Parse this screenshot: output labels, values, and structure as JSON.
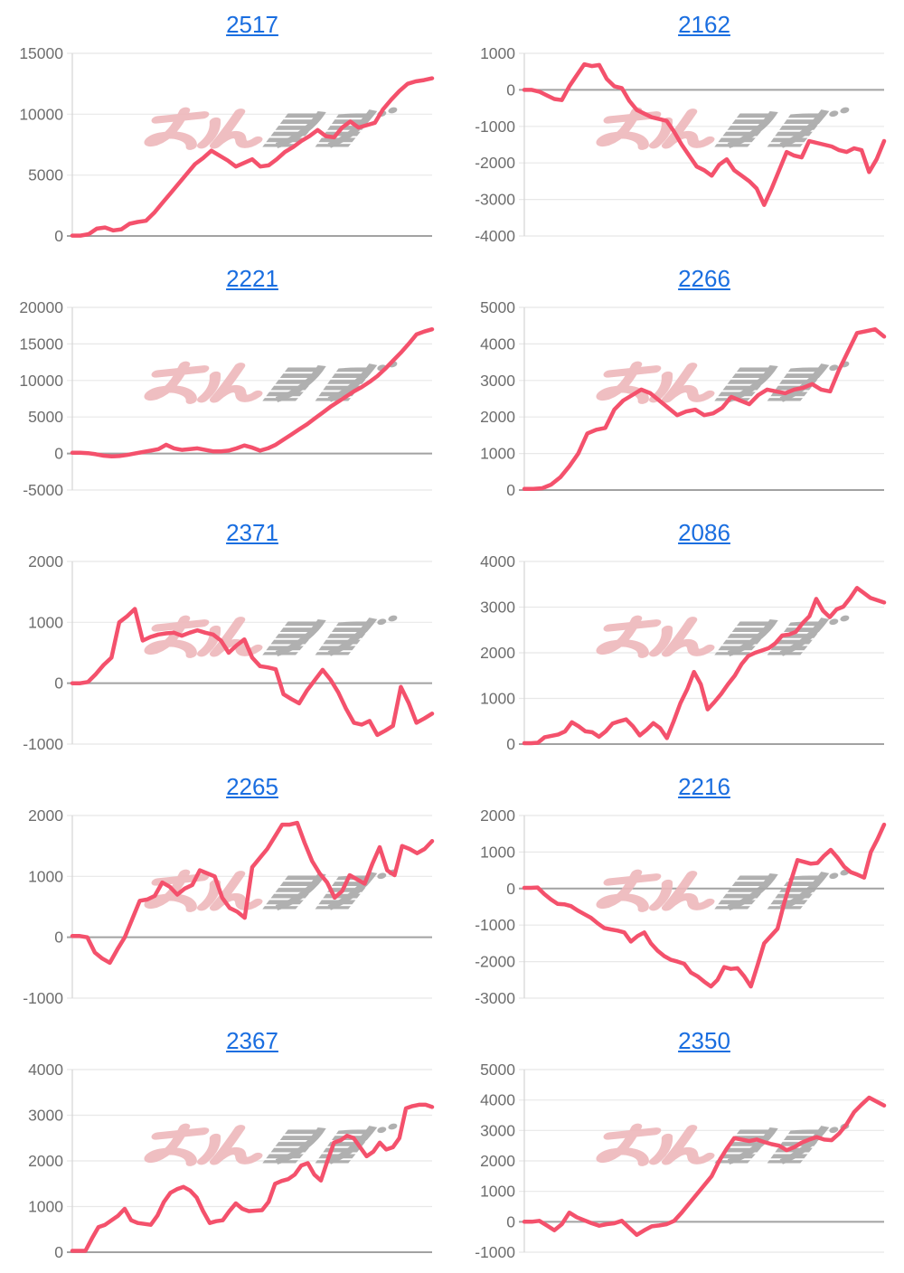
{
  "page": {
    "background": "#ffffff"
  },
  "style": {
    "line_color": "#f4516c",
    "title_color": "#1a6ee0",
    "tick_color": "#6e6e6e",
    "grid_color": "#e8e8e8",
    "zero_line_color": "#a2a2a2",
    "axis_color": "#d4d4d4",
    "watermark_pink": "#eeb7bb",
    "watermark_gray": "#a8a8a8"
  },
  "watermark_text": "みんかぶ",
  "chart_data": [
    {
      "type": "line",
      "title": "2517",
      "ylim": [
        0,
        15000
      ],
      "yticks": [
        15000,
        10000,
        5000,
        0
      ],
      "grid": true,
      "values": [
        30,
        30,
        150,
        600,
        700,
        450,
        550,
        1000,
        1150,
        1250,
        1900,
        2700,
        3500,
        4300,
        5100,
        5900,
        6400,
        7000,
        6600,
        6200,
        5700,
        6000,
        6300,
        5700,
        5800,
        6300,
        6900,
        7300,
        7800,
        8200,
        8700,
        8200,
        8100,
        8900,
        9400,
        8900,
        9100,
        9300,
        10400,
        11200,
        11900,
        12500,
        12700,
        12800,
        12950
      ]
    },
    {
      "type": "line",
      "title": "2162",
      "ylim": [
        -4000,
        1000
      ],
      "yticks": [
        1000,
        0,
        -1000,
        -2000,
        -3000,
        -4000
      ],
      "grid": true,
      "values": [
        0,
        0,
        -50,
        -150,
        -250,
        -280,
        100,
        400,
        700,
        650,
        680,
        300,
        100,
        50,
        -300,
        -550,
        -650,
        -750,
        -800,
        -850,
        -1150,
        -1500,
        -1800,
        -2100,
        -2200,
        -2350,
        -2050,
        -1900,
        -2200,
        -2350,
        -2500,
        -2700,
        -3150,
        -2700,
        -2200,
        -1700,
        -1800,
        -1850,
        -1400,
        -1450,
        -1500,
        -1550,
        -1650,
        -1700,
        -1600,
        -1650,
        -2250,
        -1900,
        -1400
      ]
    },
    {
      "type": "line",
      "title": "2221",
      "ylim": [
        -5000,
        20000
      ],
      "yticks": [
        20000,
        15000,
        10000,
        5000,
        0,
        -5000
      ],
      "grid": true,
      "values": [
        100,
        100,
        50,
        -100,
        -300,
        -400,
        -350,
        -200,
        0,
        200,
        400,
        600,
        1200,
        700,
        500,
        600,
        700,
        500,
        300,
        300,
        400,
        700,
        1100,
        800,
        400,
        700,
        1200,
        1900,
        2600,
        3300,
        4000,
        4800,
        5600,
        6400,
        7100,
        7800,
        8500,
        9100,
        9800,
        10600,
        11600,
        12700,
        13800,
        15000,
        16300,
        16700,
        17000
      ]
    },
    {
      "type": "line",
      "title": "2266",
      "ylim": [
        0,
        5000
      ],
      "yticks": [
        5000,
        4000,
        3000,
        2000,
        1000,
        0
      ],
      "grid": true,
      "values": [
        30,
        30,
        50,
        150,
        350,
        650,
        1000,
        1550,
        1650,
        1700,
        2200,
        2450,
        2600,
        2750,
        2650,
        2450,
        2250,
        2050,
        2150,
        2200,
        2050,
        2100,
        2250,
        2550,
        2450,
        2350,
        2600,
        2750,
        2700,
        2650,
        2750,
        2800,
        2900,
        2750,
        2700,
        3300,
        3800,
        4300,
        4350,
        4400,
        4200
      ]
    },
    {
      "type": "line",
      "title": "2371",
      "ylim": [
        -1000,
        2000
      ],
      "yticks": [
        2000,
        1000,
        0,
        -1000
      ],
      "grid": true,
      "values": [
        0,
        0,
        20,
        150,
        300,
        420,
        1000,
        1100,
        1220,
        700,
        760,
        800,
        820,
        830,
        780,
        830,
        870,
        830,
        800,
        700,
        500,
        620,
        720,
        420,
        280,
        260,
        230,
        -180,
        -260,
        -330,
        -120,
        50,
        220,
        60,
        -150,
        -420,
        -650,
        -680,
        -620,
        -850,
        -780,
        -700,
        -60,
        -320,
        -650,
        -580,
        -500
      ]
    },
    {
      "type": "line",
      "title": "2086",
      "ylim": [
        0,
        4000
      ],
      "yticks": [
        4000,
        3000,
        2000,
        1000,
        0
      ],
      "grid": true,
      "values": [
        20,
        20,
        30,
        150,
        180,
        210,
        280,
        480,
        390,
        280,
        260,
        160,
        280,
        450,
        500,
        540,
        390,
        190,
        310,
        460,
        350,
        130,
        500,
        900,
        1200,
        1580,
        1310,
        760,
        920,
        1100,
        1310,
        1500,
        1750,
        1930,
        2000,
        2050,
        2100,
        2210,
        2380,
        2400,
        2460,
        2650,
        2800,
        3180,
        2920,
        2780,
        2950,
        3010,
        3200,
        3420,
        3310,
        3200,
        3150,
        3100
      ]
    },
    {
      "type": "line",
      "title": "2265",
      "ylim": [
        -1000,
        2000
      ],
      "yticks": [
        2000,
        1000,
        0,
        -1000
      ],
      "grid": true,
      "values": [
        20,
        20,
        0,
        -250,
        -350,
        -420,
        -200,
        0,
        300,
        600,
        620,
        680,
        900,
        830,
        700,
        800,
        860,
        1100,
        1050,
        1000,
        650,
        480,
        420,
        320,
        1150,
        1300,
        1450,
        1650,
        1850,
        1850,
        1880,
        1550,
        1250,
        1050,
        900,
        650,
        760,
        1020,
        950,
        880,
        1200,
        1480,
        1100,
        1020,
        1500,
        1450,
        1380,
        1450,
        1580
      ]
    },
    {
      "type": "line",
      "title": "2216",
      "ylim": [
        -3000,
        2000
      ],
      "yticks": [
        2000,
        1000,
        0,
        -1000,
        -2000,
        -3000
      ],
      "grid": true,
      "values": [
        20,
        20,
        30,
        -150,
        -300,
        -420,
        -430,
        -480,
        -600,
        -700,
        -800,
        -950,
        -1080,
        -1120,
        -1150,
        -1200,
        -1450,
        -1300,
        -1200,
        -1500,
        -1700,
        -1850,
        -1950,
        -2000,
        -2060,
        -2300,
        -2400,
        -2550,
        -2680,
        -2500,
        -2150,
        -2200,
        -2180,
        -2400,
        -2680,
        -2100,
        -1500,
        -1300,
        -1100,
        -400,
        200,
        780,
        730,
        680,
        700,
        900,
        1060,
        850,
        600,
        450,
        380,
        300,
        1000,
        1350,
        1750
      ]
    },
    {
      "type": "line",
      "title": "2367",
      "ylim": [
        0,
        4000
      ],
      "yticks": [
        4000,
        3000,
        2000,
        1000,
        0
      ],
      "grid": true,
      "values": [
        30,
        30,
        30,
        300,
        550,
        600,
        700,
        800,
        950,
        700,
        640,
        620,
        600,
        800,
        1100,
        1300,
        1380,
        1430,
        1350,
        1200,
        900,
        640,
        680,
        700,
        900,
        1070,
        950,
        900,
        910,
        920,
        1100,
        1500,
        1560,
        1600,
        1700,
        1900,
        1950,
        1700,
        1570,
        2000,
        2400,
        2450,
        2550,
        2500,
        2300,
        2100,
        2200,
        2400,
        2250,
        2300,
        2500,
        3150,
        3200,
        3230,
        3230,
        3180
      ]
    },
    {
      "type": "line",
      "title": "2350",
      "ylim": [
        -1000,
        5000
      ],
      "yticks": [
        5000,
        4000,
        3000,
        2000,
        1000,
        0,
        -1000
      ],
      "grid": true,
      "values": [
        0,
        0,
        30,
        -120,
        -280,
        -80,
        300,
        150,
        50,
        -50,
        -130,
        -80,
        -50,
        30,
        -200,
        -430,
        -280,
        -150,
        -120,
        -80,
        30,
        300,
        600,
        900,
        1200,
        1500,
        2000,
        2400,
        2750,
        2700,
        2650,
        2700,
        2620,
        2550,
        2500,
        2350,
        2450,
        2600,
        2700,
        2780,
        2700,
        2680,
        2900,
        3200,
        3600,
        3850,
        4080,
        3950,
        3820
      ]
    }
  ]
}
